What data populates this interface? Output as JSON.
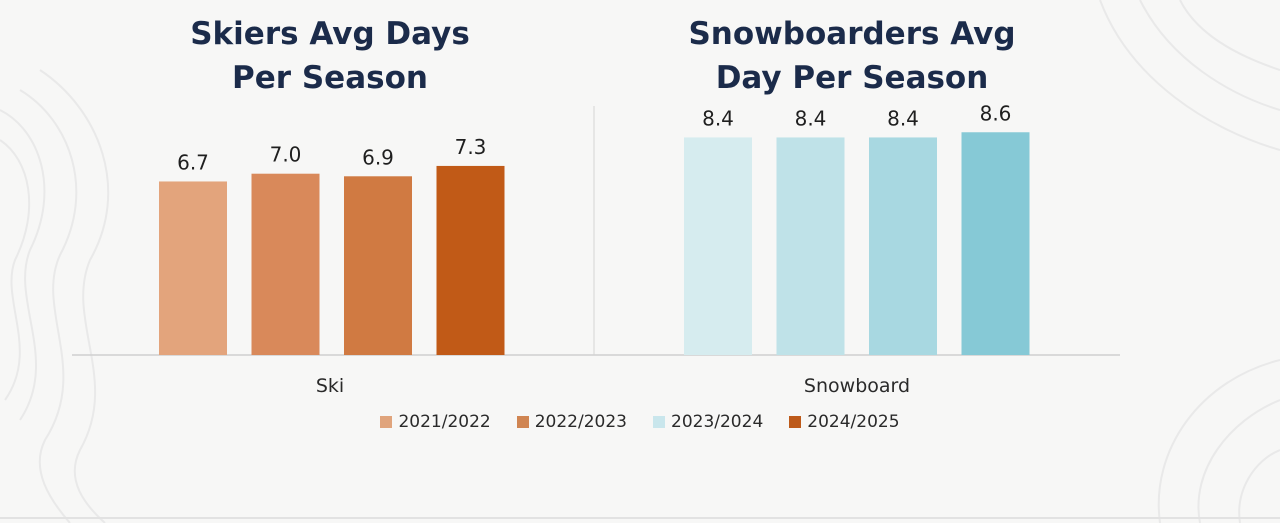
{
  "titles": {
    "left": [
      "Skiers Avg Days",
      "Per Season"
    ],
    "right": [
      "Snowboarders Avg",
      "Day Per Season"
    ]
  },
  "colors": {
    "title": "#1b2b4a",
    "ski": [
      "#e3a47c",
      "#d9895a",
      "#d07a42",
      "#c15a17"
    ],
    "snowboard": [
      "#d6ecef",
      "#bfe2e8",
      "#a8d8e1",
      "#86c9d6"
    ]
  },
  "chart_data": [
    {
      "type": "bar",
      "title": "Skiers Avg Days Per Season",
      "categories": [
        "Ski"
      ],
      "series": [
        {
          "name": "2021/2022",
          "values": [
            6.7
          ]
        },
        {
          "name": "2022/2023",
          "values": [
            7.0
          ]
        },
        {
          "name": "2023/2024",
          "values": [
            6.9
          ]
        },
        {
          "name": "2024/2025",
          "values": [
            7.3
          ]
        }
      ],
      "data_labels": [
        "6.7",
        "7.0",
        "6.9",
        "7.3"
      ],
      "ylim": [
        0,
        10
      ],
      "grid": false
    },
    {
      "type": "bar",
      "title": "Snowboarders Avg Day Per Season",
      "categories": [
        "Snowboard"
      ],
      "series": [
        {
          "name": "2021/2022",
          "values": [
            8.4
          ]
        },
        {
          "name": "2022/2023",
          "values": [
            8.4
          ]
        },
        {
          "name": "2023/2024",
          "values": [
            8.4
          ]
        },
        {
          "name": "2024/2025",
          "values": [
            8.6
          ]
        }
      ],
      "data_labels": [
        "8.4",
        "8.4",
        "8.4",
        "8.6"
      ],
      "ylim": [
        0,
        10
      ],
      "grid": false
    }
  ],
  "legend": {
    "placement": "bottom",
    "items": [
      {
        "label": "2021/2022",
        "color": "#e0a47c"
      },
      {
        "label": "2022/2023",
        "color": "#d08552"
      },
      {
        "label": "2023/2024",
        "color": "#c9e6ec"
      },
      {
        "label": "2024/2025",
        "color": "#bd5a1a"
      }
    ]
  }
}
